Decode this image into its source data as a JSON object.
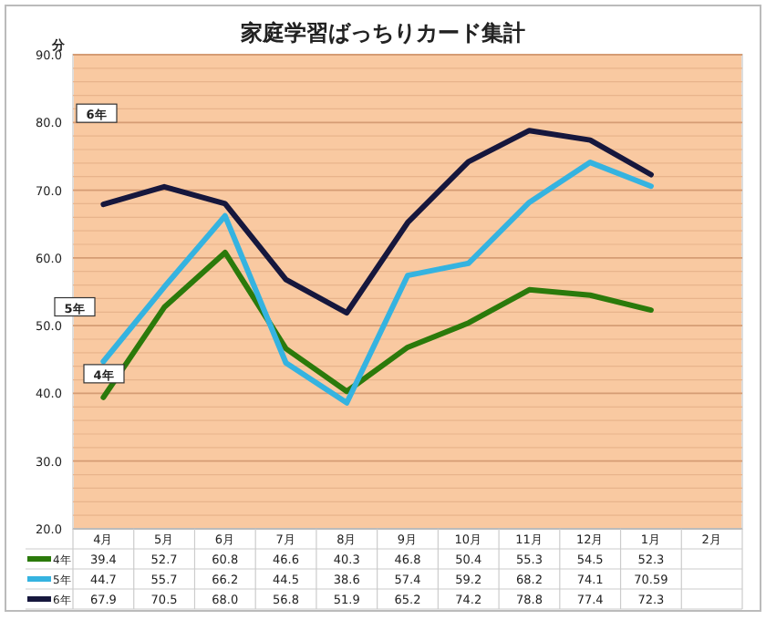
{
  "chart_data": {
    "type": "line",
    "title": "家庭学習ばっちりカード集計",
    "ylabel": "分",
    "categories": [
      "4月",
      "5月",
      "6月",
      "7月",
      "8月",
      "9月",
      "10月",
      "11月",
      "12月",
      "1月",
      "2月"
    ],
    "series": [
      {
        "name": "4年",
        "color": "#2b7a0b",
        "values": [
          39.4,
          52.7,
          60.8,
          46.6,
          40.3,
          46.8,
          50.4,
          55.3,
          54.5,
          52.3,
          null
        ],
        "value_labels": [
          "39.4",
          "52.7",
          "60.8",
          "46.6",
          "40.3",
          "46.8",
          "50.4",
          "55.3",
          "54.5",
          "52.3",
          null
        ]
      },
      {
        "name": "5年",
        "color": "#35b3e0",
        "values": [
          44.7,
          55.7,
          66.2,
          44.5,
          38.6,
          57.4,
          59.2,
          68.2,
          74.1,
          70.59,
          null
        ],
        "value_labels": [
          "44.7",
          "55.7",
          "66.2",
          "44.5",
          "38.6",
          "57.4",
          "59.2",
          "68.2",
          "74.1",
          "70.59",
          null
        ]
      },
      {
        "name": "6年",
        "color": "#16173d",
        "values": [
          67.9,
          70.5,
          68.0,
          56.8,
          51.9,
          65.2,
          74.2,
          78.8,
          77.4,
          72.3,
          null
        ],
        "value_labels": [
          "67.9",
          "70.5",
          "68.0",
          "56.8",
          "51.9",
          "65.2",
          "74.2",
          "78.8",
          "77.4",
          "72.3",
          null
        ]
      }
    ],
    "ylim": [
      20,
      90
    ],
    "yticks": [
      {
        "value": 20,
        "label": "20.0"
      },
      {
        "value": 22,
        "label": null
      },
      {
        "value": 24,
        "label": null
      },
      {
        "value": 26,
        "label": null
      },
      {
        "value": 28,
        "label": null
      },
      {
        "value": 30,
        "label": "30.0"
      },
      {
        "value": 32,
        "label": null
      },
      {
        "value": 34,
        "label": null
      },
      {
        "value": 36,
        "label": null
      },
      {
        "value": 38,
        "label": null
      },
      {
        "value": 40,
        "label": "40.0"
      },
      {
        "value": 42,
        "label": null
      },
      {
        "value": 44,
        "label": null
      },
      {
        "value": 46,
        "label": null
      },
      {
        "value": 48,
        "label": null
      },
      {
        "value": 50,
        "label": "50.0"
      },
      {
        "value": 52,
        "label": null
      },
      {
        "value": 54,
        "label": null
      },
      {
        "value": 56,
        "label": null
      },
      {
        "value": 58,
        "label": null
      },
      {
        "value": 60,
        "label": "60.0"
      },
      {
        "value": 62,
        "label": null
      },
      {
        "value": 64,
        "label": null
      },
      {
        "value": 66,
        "label": null
      },
      {
        "value": 68,
        "label": null
      },
      {
        "value": 70,
        "label": "70.0"
      },
      {
        "value": 72,
        "label": null
      },
      {
        "value": 74,
        "label": null
      },
      {
        "value": 76,
        "label": null
      },
      {
        "value": 78,
        "label": null
      },
      {
        "value": 80,
        "label": "80.0"
      },
      {
        "value": 82,
        "label": null
      },
      {
        "value": 84,
        "label": null
      },
      {
        "value": 86,
        "label": null
      },
      {
        "value": 88,
        "label": null
      },
      {
        "value": 90,
        "label": "90.0"
      }
    ],
    "grid": "y",
    "legend": "bottom"
  }
}
